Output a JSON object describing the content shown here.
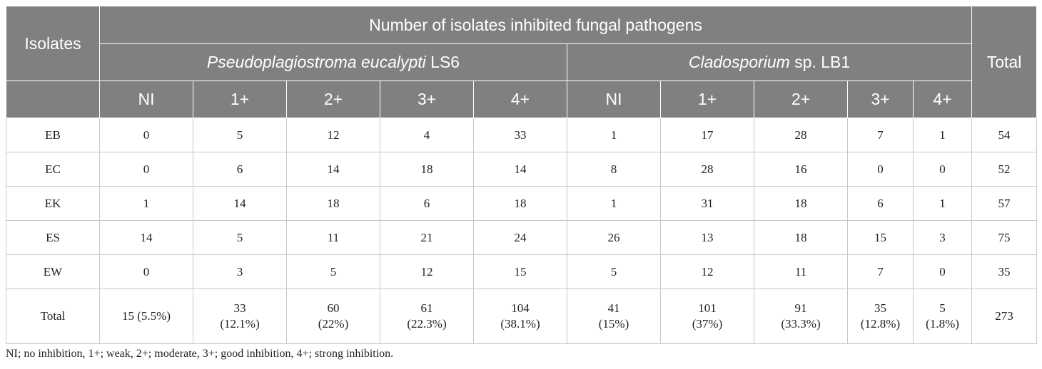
{
  "table": {
    "title": "Number of isolates inhibited fungal pathogens",
    "isolates_header": "Isolates",
    "total_header": "Total",
    "pathogen1": {
      "italic": "Pseudoplagiostroma eucalypti",
      "rest": " LS6"
    },
    "pathogen2": {
      "italic": "Cladosporium",
      "rest": " sp. LB1"
    },
    "levels": [
      "NI",
      "1+",
      "2+",
      "3+",
      "4+",
      "NI",
      "1+",
      "2+",
      "3+",
      "4+"
    ],
    "rows": [
      {
        "isolate": "EB",
        "cells": [
          "0",
          "5",
          "12",
          "4",
          "33",
          "1",
          "17",
          "28",
          "7",
          "1"
        ],
        "total": "54"
      },
      {
        "isolate": "EC",
        "cells": [
          "0",
          "6",
          "14",
          "18",
          "14",
          "8",
          "28",
          "16",
          "0",
          "0"
        ],
        "total": "52"
      },
      {
        "isolate": "EK",
        "cells": [
          "1",
          "14",
          "18",
          "6",
          "18",
          "1",
          "31",
          "18",
          "6",
          "1"
        ],
        "total": "57"
      },
      {
        "isolate": "ES",
        "cells": [
          "14",
          "5",
          "11",
          "21",
          "24",
          "26",
          "13",
          "18",
          "15",
          "3"
        ],
        "total": "75"
      },
      {
        "isolate": "EW",
        "cells": [
          "0",
          "3",
          "5",
          "12",
          "15",
          "5",
          "12",
          "11",
          "7",
          "0"
        ],
        "total": "35"
      }
    ],
    "total_row": {
      "label": "Total",
      "cells": [
        {
          "line1": "15 (5.5%)",
          "line2": ""
        },
        {
          "line1": "33",
          "line2": "(12.1%)"
        },
        {
          "line1": "60",
          "line2": "(22%)"
        },
        {
          "line1": "61",
          "line2": "(22.3%)"
        },
        {
          "line1": "104",
          "line2": "(38.1%)"
        },
        {
          "line1": "41",
          "line2": "(15%)"
        },
        {
          "line1": "101",
          "line2": "(37%)"
        },
        {
          "line1": "91",
          "line2": "(33.3%)"
        },
        {
          "line1": "35",
          "line2": "(12.8%)"
        },
        {
          "line1": "5",
          "line2": "(1.8%)"
        }
      ],
      "total": "273"
    }
  },
  "footnote": "NI; no inhibition, 1+; weak, 2+; moderate, 3+; good inhibition, 4+; strong inhibition."
}
